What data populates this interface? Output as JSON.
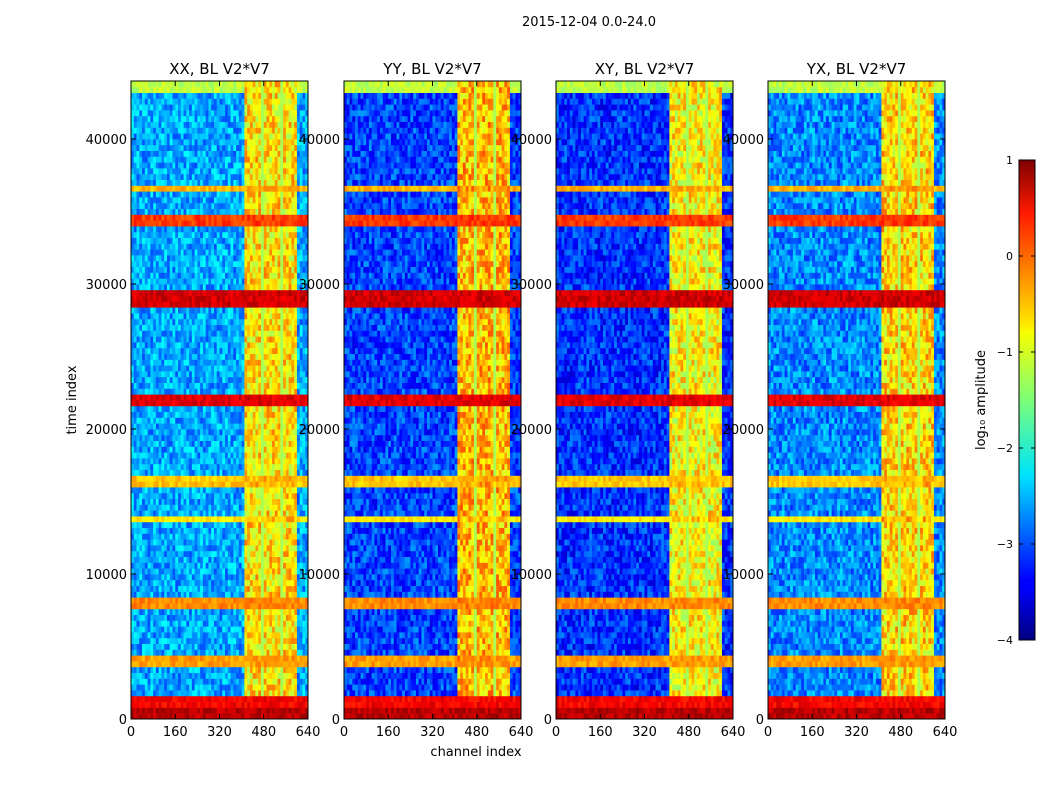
{
  "chart_data": {
    "type": "heatmap",
    "suptitle": "2015-12-04 0.0-24.0",
    "xlabel": "channel index",
    "ylabel": "time index",
    "xlim": [
      0,
      640
    ],
    "ylim": [
      0,
      44000
    ],
    "x_ticks": [
      0,
      160,
      320,
      480,
      640
    ],
    "x_tick_labels": [
      "0",
      "160",
      "320",
      "480",
      "640"
    ],
    "y_ticks": [
      0,
      10000,
      20000,
      30000,
      40000
    ],
    "y_tick_labels": [
      "0",
      "10000",
      "20000",
      "30000",
      "40000"
    ],
    "panels": [
      {
        "title": "XX, BL V2*V7",
        "background_log_amp": -2.55,
        "band_log_amp": -0.75
      },
      {
        "title": "YY, BL V2*V7",
        "background_log_amp": -3.05,
        "band_log_amp": -0.55
      },
      {
        "title": "XY, BL V2*V7",
        "background_log_amp": -3.15,
        "band_log_amp": -0.85
      },
      {
        "title": "YX, BL V2*V7",
        "background_log_amp": -2.7,
        "band_log_amp": -0.7
      }
    ],
    "channel_bands": [
      {
        "start": 410,
        "end": 605,
        "value": -0.9
      }
    ],
    "channel_gaps": [
      440,
      475,
      510,
      545,
      580
    ],
    "time_bands": [
      {
        "start": 200,
        "end": 700,
        "value": 0.7
      },
      {
        "start": 700,
        "end": 1800,
        "value": 0.4
      },
      {
        "start": 3800,
        "end": 4300,
        "value": -0.4
      },
      {
        "start": 7800,
        "end": 8300,
        "value": -0.3
      },
      {
        "start": 13500,
        "end": 14200,
        "value": -0.8
      },
      {
        "start": 16200,
        "end": 16700,
        "value": -0.6
      },
      {
        "start": 21500,
        "end": 22400,
        "value": 0.5
      },
      {
        "start": 28600,
        "end": 29700,
        "value": 0.6
      },
      {
        "start": 34200,
        "end": 34900,
        "value": 0.1
      },
      {
        "start": 36400,
        "end": 37000,
        "value": -0.5
      },
      {
        "start": 43300,
        "end": 44000,
        "value": -1.2
      }
    ],
    "colorbar": {
      "label": "log₁₀ amplitude",
      "range": [
        -4,
        1
      ],
      "ticks": [
        1,
        0,
        -1,
        -2,
        -3,
        -4
      ],
      "tick_labels": [
        "1",
        "0",
        "−1",
        "−2",
        "−3",
        "−4"
      ],
      "colormap": "jet"
    }
  }
}
